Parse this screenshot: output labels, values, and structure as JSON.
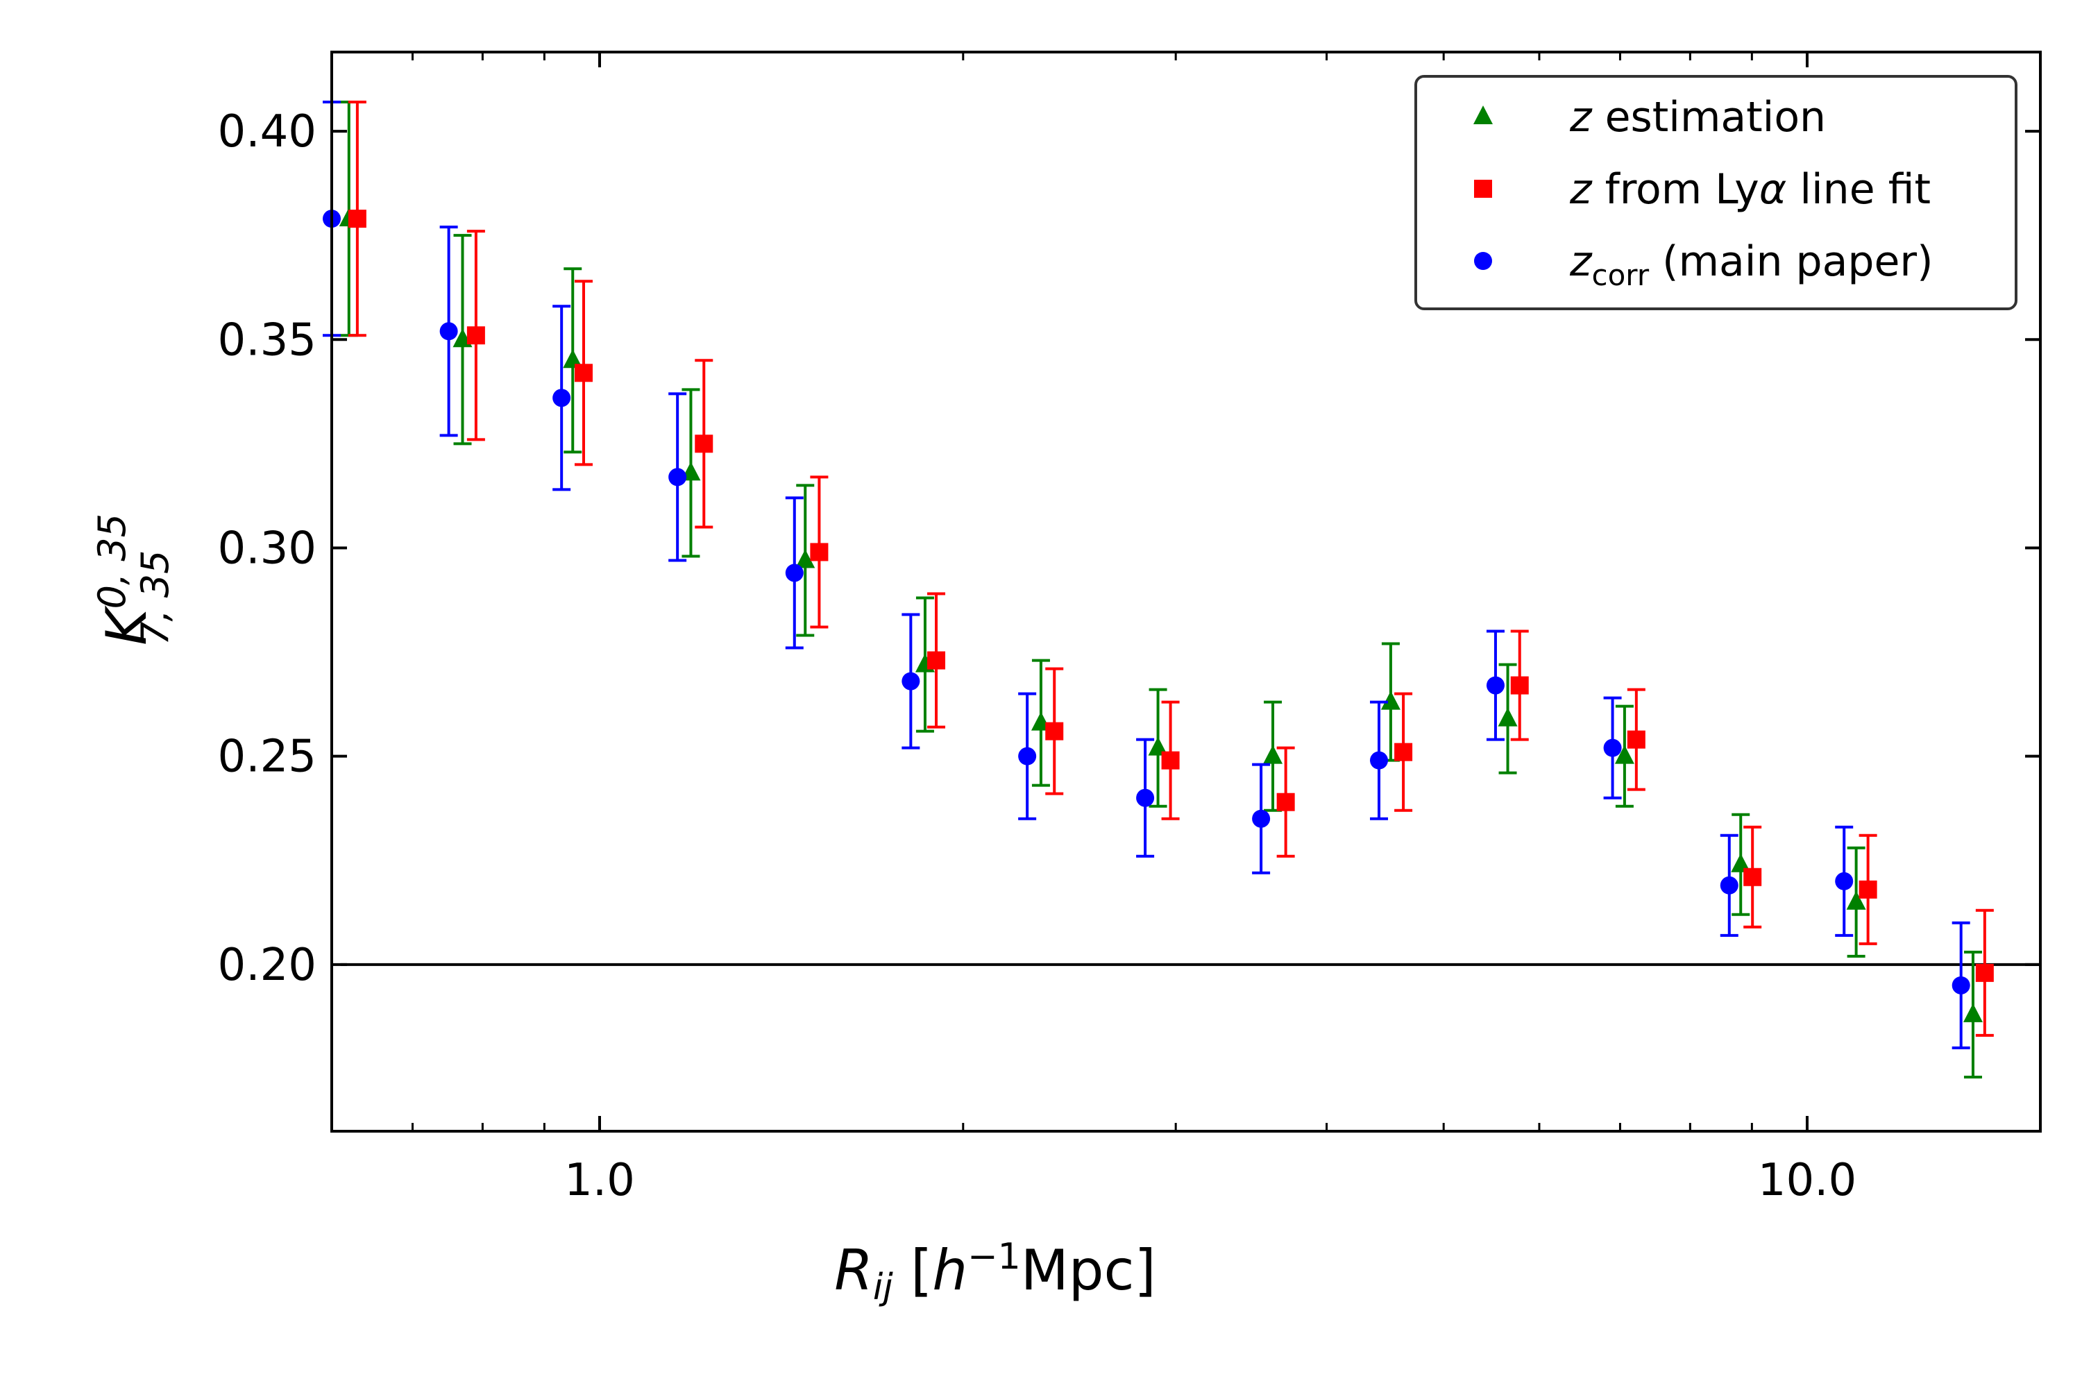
{
  "chart_data": {
    "type": "scatter",
    "title": "",
    "xlabel": {
      "main": "R",
      "sub": "ij",
      "unit_open": " [",
      "h": "h",
      "sup": "−1",
      "unit_close": "Mpc]"
    },
    "ylabel": {
      "main": "K",
      "sub": "7, 35",
      "sup": "0, 35"
    },
    "xscale": "log",
    "xlim": [
      0.6,
      15.6
    ],
    "ylim": [
      0.16,
      0.419
    ],
    "xticks": [
      {
        "value": 1.0,
        "label": "1.0"
      },
      {
        "value": 10.0,
        "label": "10.0"
      }
    ],
    "yticks": [
      {
        "value": 0.2,
        "label": "0.20"
      },
      {
        "value": 0.25,
        "label": "0.25"
      },
      {
        "value": 0.3,
        "label": "0.30"
      },
      {
        "value": 0.35,
        "label": "0.35"
      },
      {
        "value": 0.4,
        "label": "0.40"
      }
    ],
    "hline": {
      "y": 0.2,
      "xmin": 0.61,
      "xmax": 15.6,
      "color": "#000000"
    },
    "legend_position": "top-right",
    "series": [
      {
        "name": "z estimation",
        "legend_parts": [
          {
            "t": "z",
            "italic": true
          },
          {
            "t": " estimation"
          }
        ],
        "color": "#008000",
        "marker": "triangle",
        "x": [
          0.62,
          0.77,
          0.95,
          1.19,
          1.48,
          1.86,
          2.32,
          2.9,
          3.61,
          4.52,
          5.65,
          7.06,
          8.81,
          10.98,
          13.72
        ],
        "y": [
          0.379,
          0.35,
          0.345,
          0.318,
          0.297,
          0.272,
          0.258,
          0.252,
          0.25,
          0.263,
          0.259,
          0.25,
          0.224,
          0.215,
          0.188
        ],
        "yerr": [
          0.028,
          0.025,
          0.022,
          0.02,
          0.018,
          0.016,
          0.015,
          0.014,
          0.013,
          0.014,
          0.013,
          0.012,
          0.012,
          0.013,
          0.015
        ]
      },
      {
        "name": "z from Lyα line fit",
        "legend_parts": [
          {
            "t": "z",
            "italic": true
          },
          {
            "t": " from Ly"
          },
          {
            "t": "α",
            "italic": true
          },
          {
            "t": " line fit"
          }
        ],
        "color": "#ff0000",
        "marker": "square",
        "x": [
          0.63,
          0.79,
          0.97,
          1.22,
          1.52,
          1.9,
          2.38,
          2.97,
          3.7,
          4.63,
          5.78,
          7.22,
          9.01,
          11.23,
          14.03
        ],
        "y": [
          0.379,
          0.351,
          0.342,
          0.325,
          0.299,
          0.273,
          0.256,
          0.249,
          0.239,
          0.251,
          0.267,
          0.254,
          0.221,
          0.218,
          0.198
        ],
        "yerr": [
          0.028,
          0.025,
          0.022,
          0.02,
          0.018,
          0.016,
          0.015,
          0.014,
          0.013,
          0.014,
          0.013,
          0.012,
          0.012,
          0.013,
          0.015
        ]
      },
      {
        "name": "z_corr (main paper)",
        "legend_parts": [
          {
            "t": "z",
            "italic": true
          },
          {
            "t": "corr",
            "sub": true
          },
          {
            "t": " (main paper)"
          }
        ],
        "color": "#0000ff",
        "marker": "circle",
        "x": [
          0.6,
          0.75,
          0.93,
          1.16,
          1.45,
          1.81,
          2.26,
          2.83,
          3.53,
          4.42,
          5.52,
          6.9,
          8.62,
          10.73,
          13.41
        ],
        "y": [
          0.379,
          0.352,
          0.336,
          0.317,
          0.294,
          0.268,
          0.25,
          0.24,
          0.235,
          0.249,
          0.267,
          0.252,
          0.219,
          0.22,
          0.195
        ],
        "yerr": [
          0.028,
          0.025,
          0.022,
          0.02,
          0.018,
          0.016,
          0.015,
          0.014,
          0.013,
          0.014,
          0.013,
          0.012,
          0.012,
          0.013,
          0.015
        ]
      }
    ]
  }
}
